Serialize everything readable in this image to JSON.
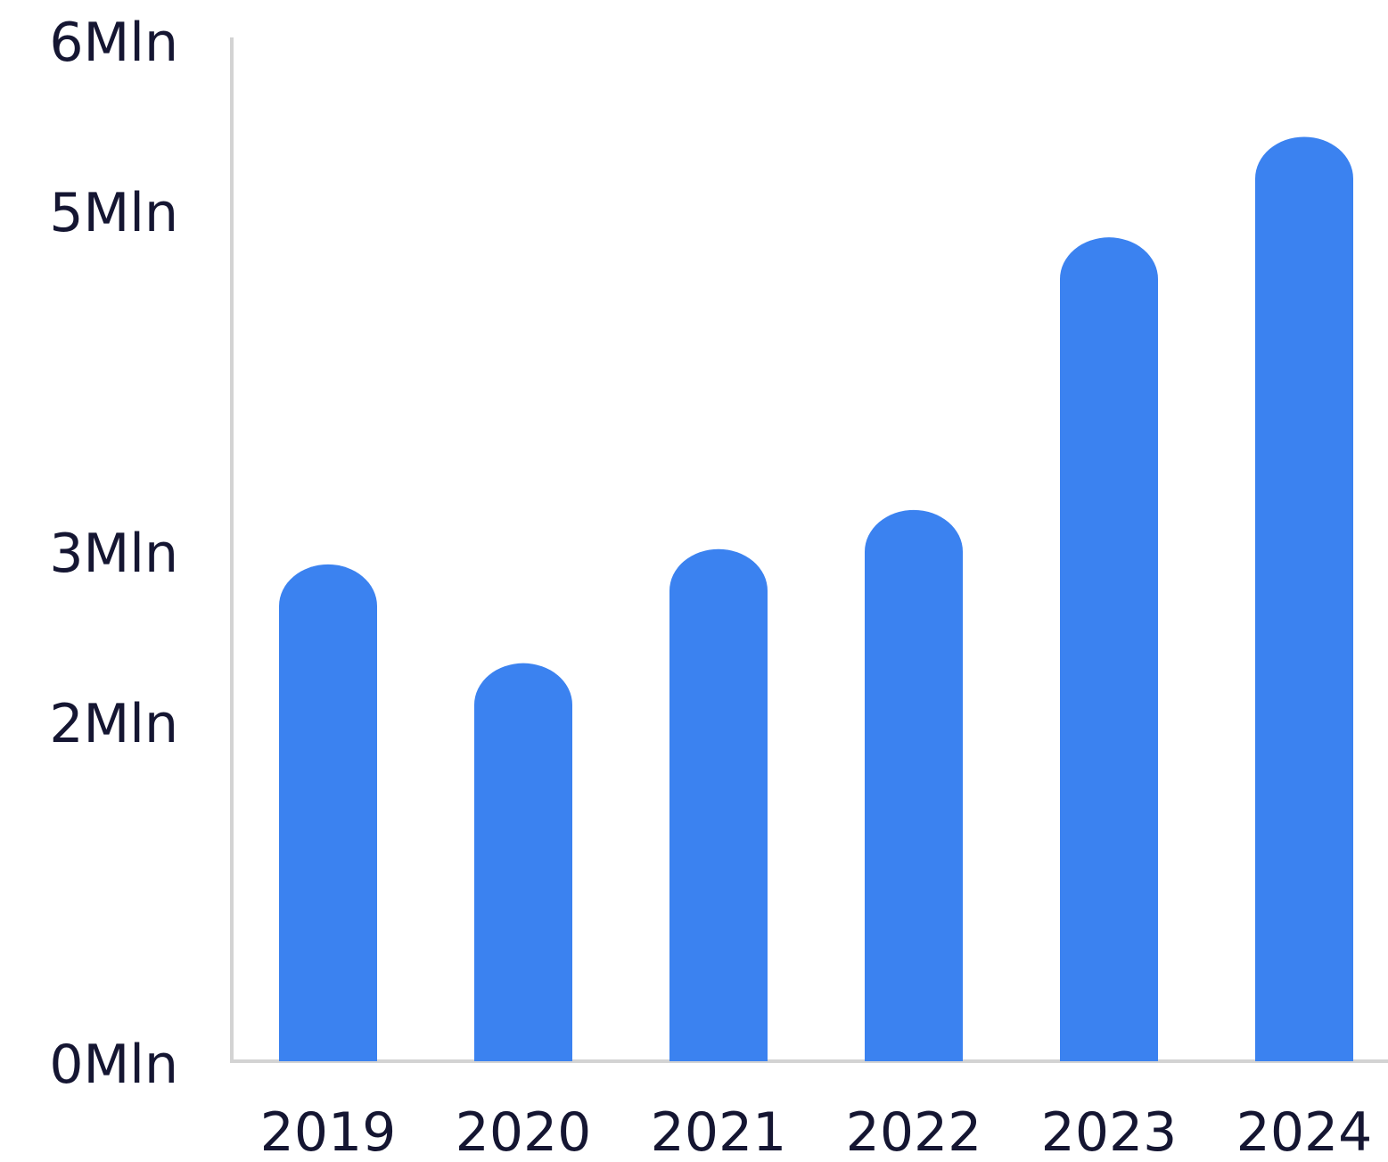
{
  "chart_data": {
    "type": "bar",
    "categories": [
      "2019",
      "2020",
      "2021",
      "2022",
      "2023",
      "2024"
    ],
    "series": [
      {
        "values": [
          2.96,
          2.38,
          3.05,
          3.28,
          4.88,
          5.47
        ]
      }
    ],
    "ylim": [
      0,
      6
    ],
    "y_ticks": [
      {
        "value": 0,
        "label": "0Mln"
      },
      {
        "value": 2,
        "label": "2Mln"
      },
      {
        "value": 3,
        "label": "3Mln"
      },
      {
        "value": 5,
        "label": "5Mln"
      },
      {
        "value": 6,
        "label": "6Mln"
      }
    ],
    "grid": false,
    "legend": "none",
    "colors": {
      "bar": "#3B82F0",
      "axis": "#D3D3D3",
      "text": "#151632"
    }
  }
}
